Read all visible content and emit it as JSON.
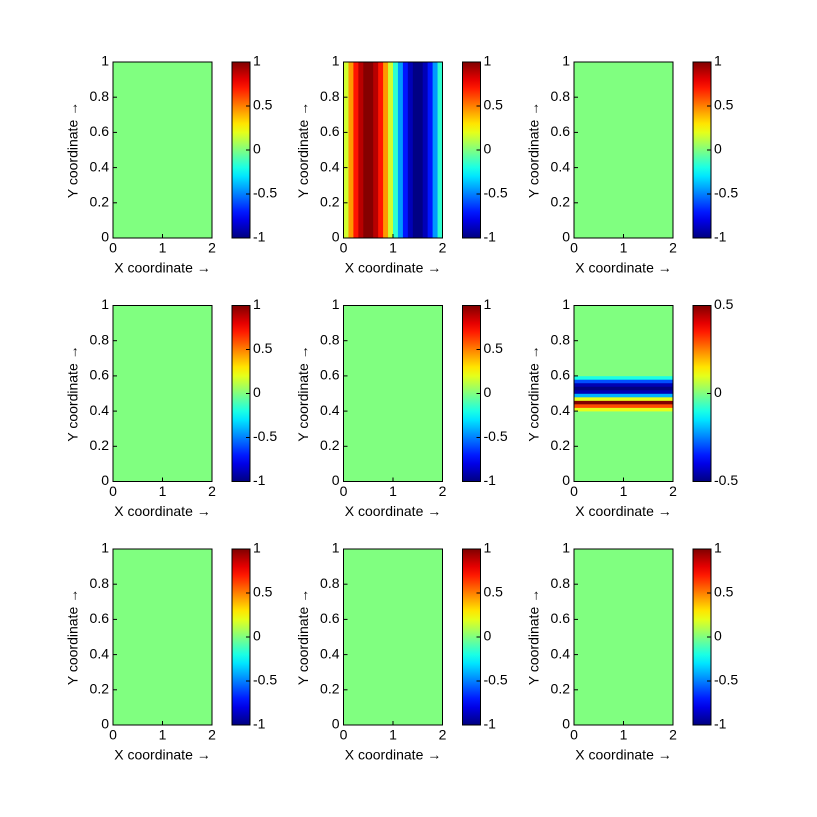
{
  "chart_data": [
    {
      "type": "heatmap",
      "colormap": "jet",
      "xlabel": "X coordinate →",
      "ylabel": "Y coordinate →",
      "xbins": [
        0,
        2
      ],
      "ybins": [
        0,
        1
      ],
      "values": [
        [
          0
        ]
      ],
      "xlim": [
        0,
        2
      ],
      "ylim": [
        0,
        1
      ],
      "xticks": [
        0,
        1,
        2
      ],
      "yticks": [
        0,
        0.2,
        0.4,
        0.6,
        0.8,
        1
      ],
      "clim": [
        -1,
        1
      ],
      "cticks": [
        -1,
        -0.5,
        0,
        0.5,
        1
      ]
    },
    {
      "type": "heatmap",
      "colormap": "jet",
      "xlabel": "X coordinate →",
      "ylabel": "Y coordinate →",
      "xbins": [
        0,
        0.1,
        0.2,
        0.3,
        0.4,
        0.5,
        0.6,
        0.7,
        0.8,
        0.9,
        1,
        1.1,
        1.2,
        1.3,
        1.4,
        1.5,
        1.6,
        1.7,
        1.8,
        1.9,
        2
      ],
      "ybins": [
        0,
        1
      ],
      "values": [
        [
          0.16,
          0.45,
          0.71,
          0.89,
          0.99,
          0.99,
          0.89,
          0.71,
          0.45,
          0.16,
          -0.16,
          -0.45,
          -0.71,
          -0.89,
          -0.99,
          -0.99,
          -0.89,
          -0.71,
          -0.45,
          -0.16
        ]
      ],
      "xlim": [
        0,
        2
      ],
      "ylim": [
        0,
        1
      ],
      "xticks": [
        0,
        1,
        2
      ],
      "yticks": [
        0,
        0.2,
        0.4,
        0.6,
        0.8,
        1
      ],
      "clim": [
        -1,
        1
      ],
      "cticks": [
        -1,
        -0.5,
        0,
        0.5,
        1
      ]
    },
    {
      "type": "heatmap",
      "colormap": "jet",
      "xlabel": "X coordinate →",
      "ylabel": "Y coordinate →",
      "xbins": [
        0,
        2
      ],
      "ybins": [
        0,
        1
      ],
      "values": [
        [
          0
        ]
      ],
      "xlim": [
        0,
        2
      ],
      "ylim": [
        0,
        1
      ],
      "xticks": [
        0,
        1,
        2
      ],
      "yticks": [
        0,
        0.2,
        0.4,
        0.6,
        0.8,
        1
      ],
      "clim": [
        -1,
        1
      ],
      "cticks": [
        -1,
        -0.5,
        0,
        0.5,
        1
      ]
    },
    {
      "type": "heatmap",
      "colormap": "jet",
      "xlabel": "X coordinate →",
      "ylabel": "Y coordinate →",
      "xbins": [
        0,
        2
      ],
      "ybins": [
        0,
        1
      ],
      "values": [
        [
          0
        ]
      ],
      "xlim": [
        0,
        2
      ],
      "ylim": [
        0,
        1
      ],
      "xticks": [
        0,
        1,
        2
      ],
      "yticks": [
        0,
        0.2,
        0.4,
        0.6,
        0.8,
        1
      ],
      "clim": [
        -1,
        1
      ],
      "cticks": [
        -1,
        -0.5,
        0,
        0.5,
        1
      ]
    },
    {
      "type": "heatmap",
      "colormap": "jet",
      "xlabel": "X coordinate →",
      "ylabel": "Y coordinate →",
      "xbins": [
        0,
        2
      ],
      "ybins": [
        0,
        1
      ],
      "values": [
        [
          0
        ]
      ],
      "xlim": [
        0,
        2
      ],
      "ylim": [
        0,
        1
      ],
      "xticks": [
        0,
        1,
        2
      ],
      "yticks": [
        0,
        0.2,
        0.4,
        0.6,
        0.8,
        1
      ],
      "clim": [
        -1,
        1
      ],
      "cticks": [
        -1,
        -0.5,
        0,
        0.5,
        1
      ]
    },
    {
      "type": "heatmap",
      "colormap": "jet",
      "xlabel": "X coordinate →",
      "ylabel": "Y coordinate →",
      "xbins": [
        0,
        2
      ],
      "ybins": [
        0,
        0.4,
        0.42,
        0.44,
        0.46,
        0.48,
        0.5,
        0.52,
        0.54,
        0.56,
        0.58,
        0.6,
        1
      ],
      "values": [
        [
          0
        ],
        [
          0.1
        ],
        [
          0.3
        ],
        [
          0.5
        ],
        [
          0.1
        ],
        [
          -0.2
        ],
        [
          -0.45
        ],
        [
          -0.5
        ],
        [
          -0.45
        ],
        [
          -0.3
        ],
        [
          -0.1
        ],
        [
          0
        ]
      ],
      "xlim": [
        0,
        2
      ],
      "ylim": [
        0,
        1
      ],
      "xticks": [
        0,
        1,
        2
      ],
      "yticks": [
        0,
        0.2,
        0.4,
        0.6,
        0.8,
        1
      ],
      "clim": [
        -0.5,
        0.5
      ],
      "cticks": [
        -0.5,
        0,
        0.5
      ]
    },
    {
      "type": "heatmap",
      "colormap": "jet",
      "xlabel": "X coordinate →",
      "ylabel": "Y coordinate →",
      "xbins": [
        0,
        2
      ],
      "ybins": [
        0,
        1
      ],
      "values": [
        [
          0
        ]
      ],
      "xlim": [
        0,
        2
      ],
      "ylim": [
        0,
        1
      ],
      "xticks": [
        0,
        1,
        2
      ],
      "yticks": [
        0,
        0.2,
        0.4,
        0.6,
        0.8,
        1
      ],
      "clim": [
        -1,
        1
      ],
      "cticks": [
        -1,
        -0.5,
        0,
        0.5,
        1
      ]
    },
    {
      "type": "heatmap",
      "colormap": "jet",
      "xlabel": "X coordinate →",
      "ylabel": "Y coordinate →",
      "xbins": [
        0,
        2
      ],
      "ybins": [
        0,
        1
      ],
      "values": [
        [
          0
        ]
      ],
      "xlim": [
        0,
        2
      ],
      "ylim": [
        0,
        1
      ],
      "xticks": [
        0,
        1,
        2
      ],
      "yticks": [
        0,
        0.2,
        0.4,
        0.6,
        0.8,
        1
      ],
      "clim": [
        -1,
        1
      ],
      "cticks": [
        -1,
        -0.5,
        0,
        0.5,
        1
      ]
    },
    {
      "type": "heatmap",
      "colormap": "jet",
      "xlabel": "X coordinate →",
      "ylabel": "Y coordinate →",
      "xbins": [
        0,
        2
      ],
      "ybins": [
        0,
        1
      ],
      "values": [
        [
          0
        ]
      ],
      "xlim": [
        0,
        2
      ],
      "ylim": [
        0,
        1
      ],
      "xticks": [
        0,
        1,
        2
      ],
      "yticks": [
        0,
        0.2,
        0.4,
        0.6,
        0.8,
        1
      ],
      "clim": [
        -1,
        1
      ],
      "cticks": [
        -1,
        -0.5,
        0,
        0.5,
        1
      ]
    }
  ]
}
